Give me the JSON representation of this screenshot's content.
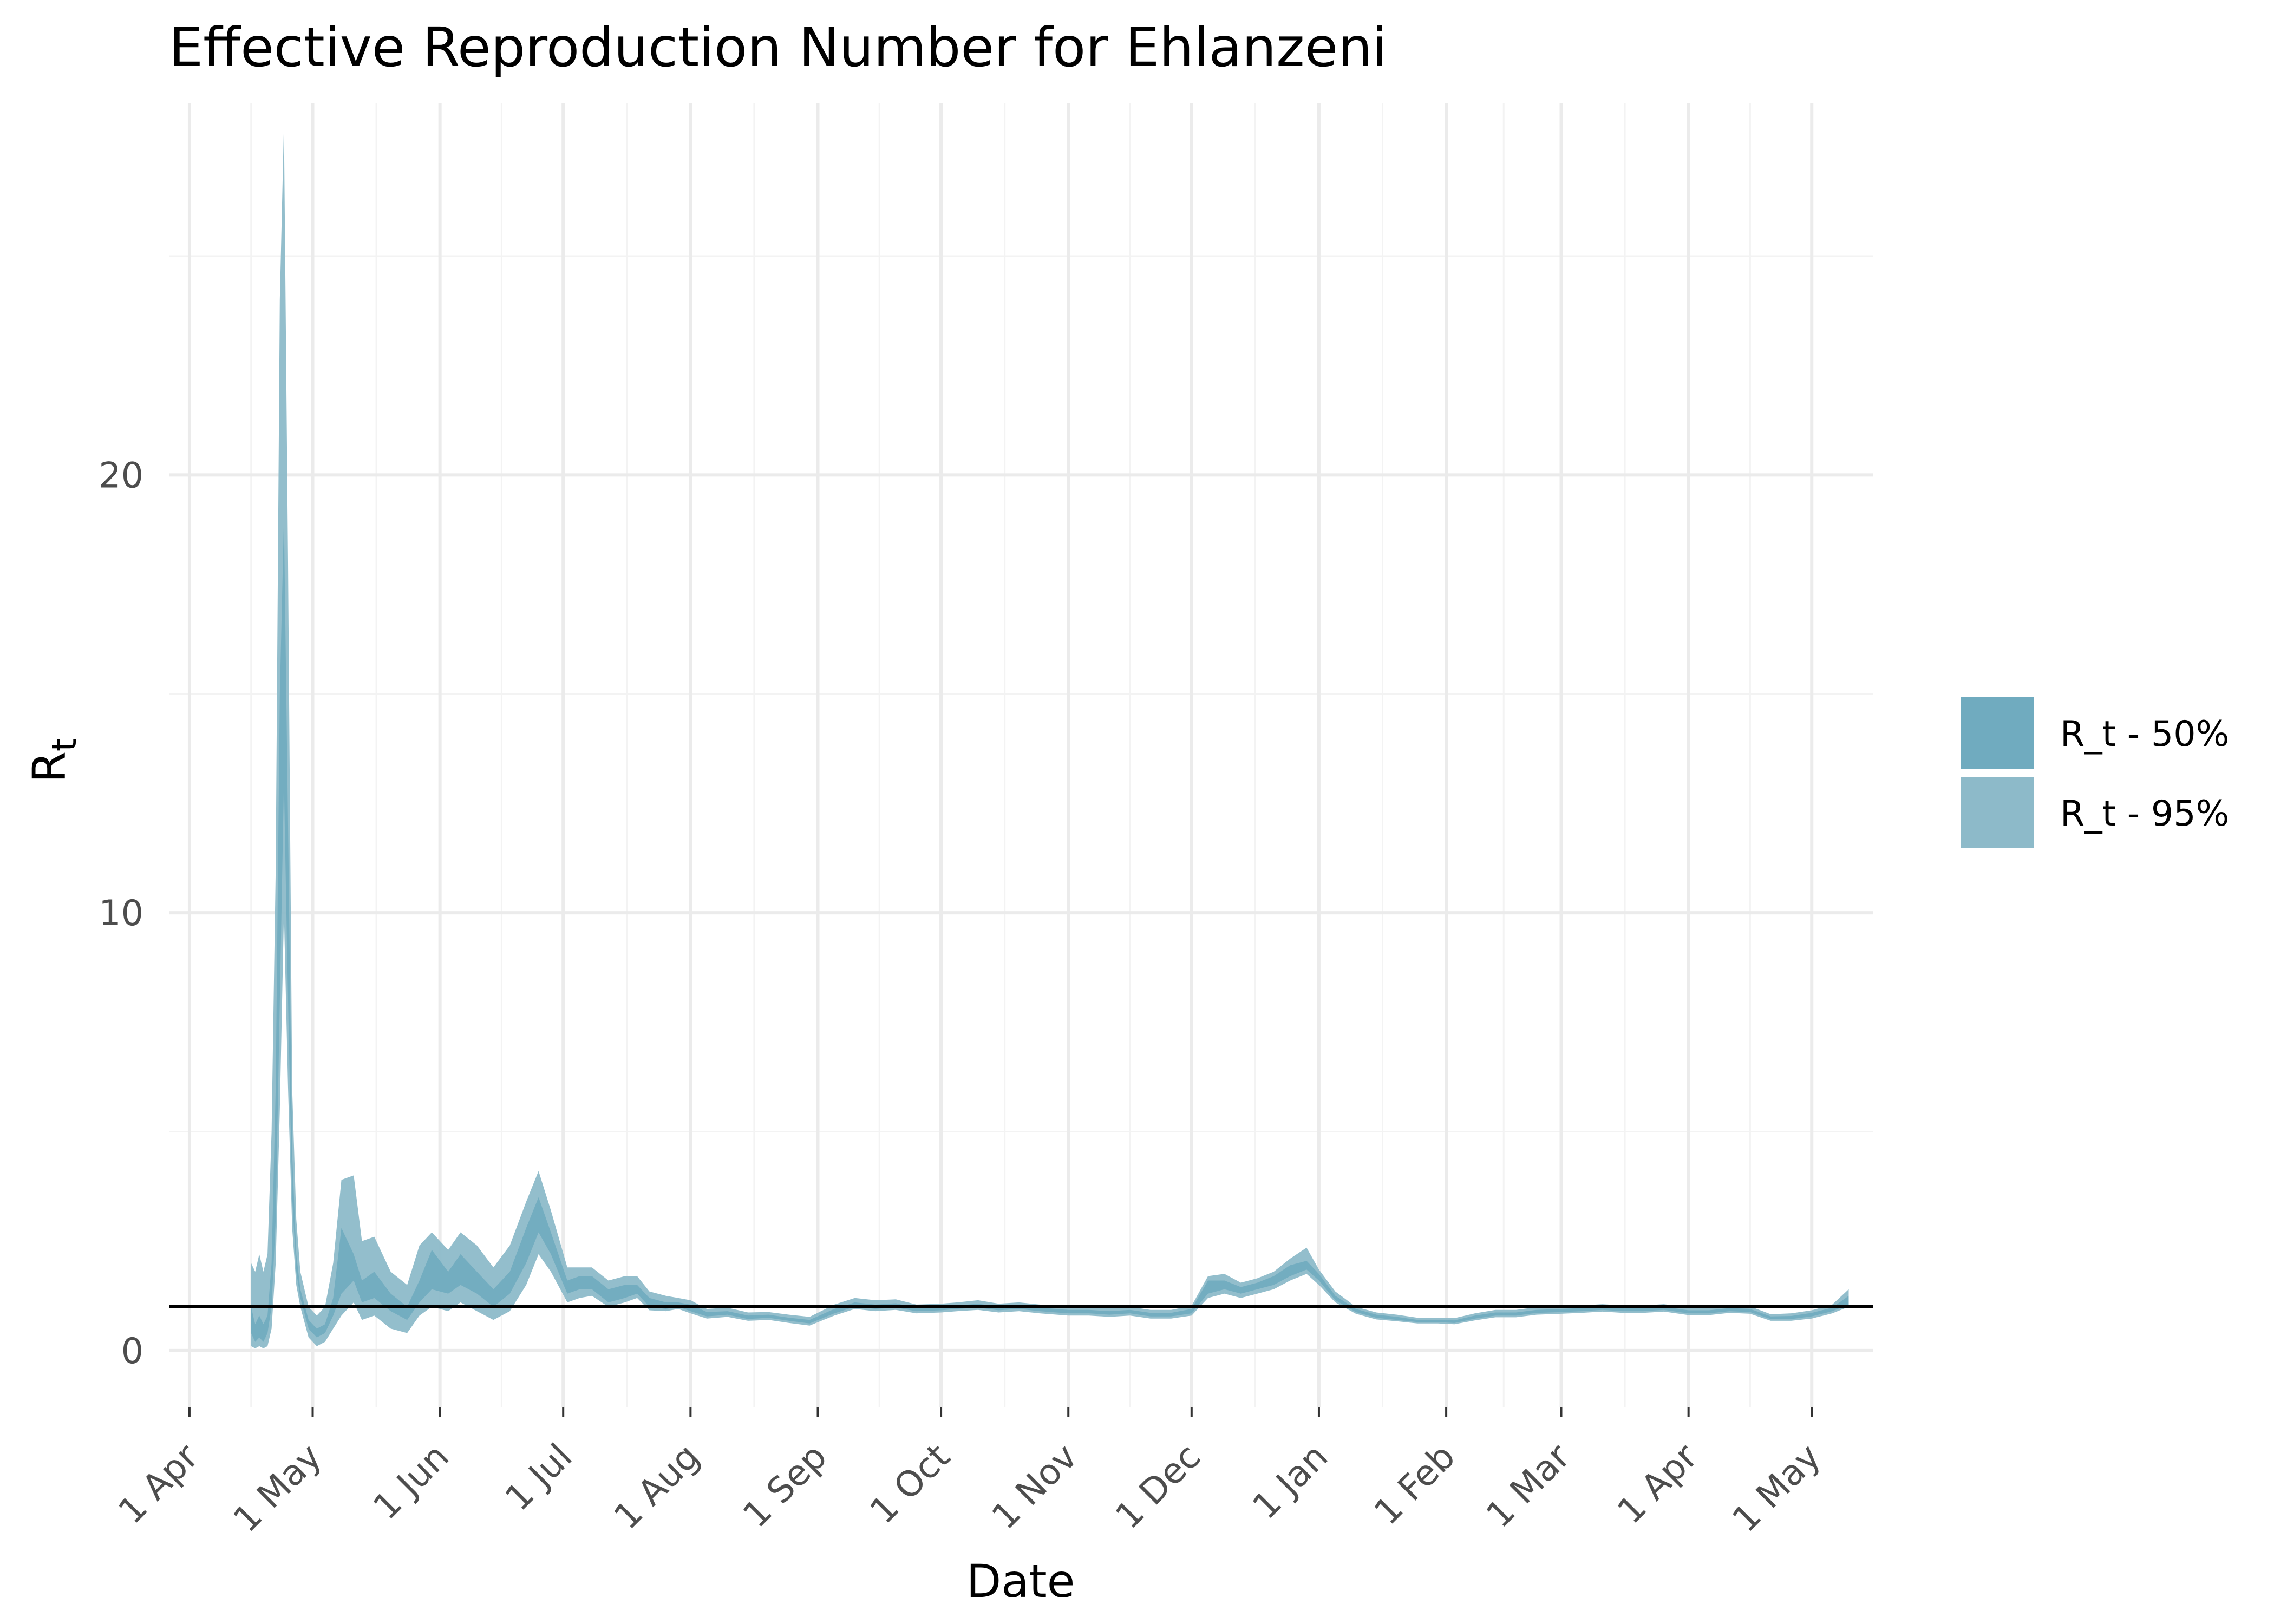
{
  "chart_data": {
    "type": "area",
    "title": "Effective Reproduction Number for Ehlanzeni",
    "xlabel": "Date",
    "ylabel": "R",
    "ylabel_subscript": "t",
    "x_ticks": [
      "1 Apr",
      "1 May",
      "1 Jun",
      "1 Jul",
      "1 Aug",
      "1 Sep",
      "1 Oct",
      "1 Nov",
      "1 Dec",
      "1 Jan",
      "1 Feb",
      "1 Mar",
      "1 Apr",
      "1 May"
    ],
    "x_tick_dates": [
      "2020-04-01",
      "2020-05-01",
      "2020-06-01",
      "2020-07-01",
      "2020-08-01",
      "2020-09-01",
      "2020-10-01",
      "2020-11-01",
      "2020-12-01",
      "2021-01-01",
      "2021-02-01",
      "2021-03-01",
      "2021-04-01",
      "2021-05-01"
    ],
    "xlim": [
      "2020-03-27",
      "2021-05-16"
    ],
    "y_ticks": [
      0,
      10,
      20
    ],
    "ylim": [
      -1.3,
      28.5
    ],
    "grid": true,
    "reference_line": 1,
    "legend_position": "right",
    "colors": {
      "band50": "#70abbf",
      "band95": "#8dbac9",
      "reference_line": "#000000",
      "grid_major": "#ebebeb",
      "grid_minor": "#f3f3f3"
    },
    "series": [
      {
        "name": "R_t - 50%",
        "x": [
          "2020-04-16",
          "2020-04-17",
          "2020-04-18",
          "2020-04-19",
          "2020-04-20",
          "2020-04-21",
          "2020-04-22",
          "2020-04-23",
          "2020-04-24",
          "2020-04-25",
          "2020-04-26",
          "2020-04-27",
          "2020-04-28",
          "2020-04-30",
          "2020-05-02",
          "2020-05-04",
          "2020-05-06",
          "2020-05-08",
          "2020-05-11",
          "2020-05-13",
          "2020-05-16",
          "2020-05-20",
          "2020-05-24",
          "2020-05-27",
          "2020-05-30",
          "2020-06-03",
          "2020-06-06",
          "2020-06-10",
          "2020-06-14",
          "2020-06-18",
          "2020-06-22",
          "2020-06-25",
          "2020-06-28",
          "2020-07-02",
          "2020-07-05",
          "2020-07-08",
          "2020-07-12",
          "2020-07-16",
          "2020-07-19",
          "2020-07-22",
          "2020-07-26",
          "2020-07-29",
          "2020-08-01",
          "2020-08-05",
          "2020-08-10",
          "2020-08-15",
          "2020-08-20",
          "2020-08-25",
          "2020-08-30",
          "2020-09-05",
          "2020-09-10",
          "2020-09-15",
          "2020-09-20",
          "2020-09-25",
          "2020-10-01",
          "2020-10-05",
          "2020-10-10",
          "2020-10-15",
          "2020-10-20",
          "2020-10-25",
          "2020-11-01",
          "2020-11-06",
          "2020-11-11",
          "2020-11-16",
          "2020-11-21",
          "2020-11-26",
          "2020-12-01",
          "2020-12-05",
          "2020-12-09",
          "2020-12-13",
          "2020-12-17",
          "2020-12-21",
          "2020-12-25",
          "2020-12-29",
          "2021-01-01",
          "2021-01-05",
          "2021-01-10",
          "2021-01-15",
          "2021-01-20",
          "2021-01-25",
          "2021-01-30",
          "2021-02-03",
          "2021-02-08",
          "2021-02-13",
          "2021-02-18",
          "2021-02-23",
          "2021-03-01",
          "2021-03-06",
          "2021-03-11",
          "2021-03-16",
          "2021-03-21",
          "2021-03-26",
          "2021-04-01",
          "2021-04-06",
          "2021-04-11",
          "2021-04-16",
          "2021-04-21",
          "2021-04-26",
          "2021-05-01",
          "2021-05-06",
          "2021-05-10"
        ],
        "lower": [
          0.4,
          0.2,
          0.3,
          0.2,
          0.4,
          1.0,
          3.0,
          8.0,
          13.0,
          8.0,
          3.5,
          1.8,
          1.2,
          0.5,
          0.3,
          0.4,
          0.8,
          1.3,
          1.6,
          1.1,
          1.2,
          0.9,
          0.7,
          1.1,
          1.4,
          1.3,
          1.5,
          1.3,
          1.0,
          1.3,
          2.0,
          2.7,
          2.2,
          1.3,
          1.4,
          1.4,
          1.1,
          1.2,
          1.3,
          1.0,
          0.95,
          1.0,
          0.9,
          0.78,
          0.82,
          0.72,
          0.75,
          0.68,
          0.62,
          0.85,
          1.0,
          0.95,
          0.98,
          0.9,
          0.92,
          0.95,
          0.98,
          0.92,
          0.95,
          0.9,
          0.85,
          0.85,
          0.82,
          0.85,
          0.78,
          0.78,
          0.85,
          1.3,
          1.4,
          1.3,
          1.4,
          1.5,
          1.7,
          1.85,
          1.6,
          1.15,
          0.88,
          0.75,
          0.7,
          0.65,
          0.65,
          0.63,
          0.73,
          0.8,
          0.8,
          0.86,
          0.88,
          0.9,
          0.93,
          0.9,
          0.9,
          0.93,
          0.85,
          0.85,
          0.9,
          0.88,
          0.72,
          0.72,
          0.78,
          0.9,
          1.05
        ],
        "upper": [
          1.0,
          0.6,
          0.8,
          0.6,
          0.8,
          2.0,
          6.0,
          15.0,
          19.0,
          12.0,
          4.5,
          2.2,
          1.4,
          0.7,
          0.5,
          0.6,
          1.2,
          2.8,
          2.2,
          1.6,
          1.8,
          1.3,
          1.0,
          1.6,
          2.3,
          1.8,
          2.2,
          1.8,
          1.4,
          1.8,
          2.8,
          3.5,
          2.7,
          1.6,
          1.7,
          1.7,
          1.4,
          1.5,
          1.5,
          1.2,
          1.1,
          1.1,
          1.05,
          0.88,
          0.9,
          0.8,
          0.82,
          0.75,
          0.7,
          0.95,
          1.1,
          1.05,
          1.08,
          0.98,
          1.0,
          1.03,
          1.07,
          1.0,
          1.03,
          0.98,
          0.93,
          0.93,
          0.9,
          0.93,
          0.86,
          0.86,
          0.95,
          1.6,
          1.6,
          1.45,
          1.55,
          1.7,
          1.95,
          2.05,
          1.75,
          1.25,
          0.95,
          0.82,
          0.77,
          0.7,
          0.7,
          0.69,
          0.8,
          0.87,
          0.87,
          0.93,
          0.95,
          0.97,
          1.0,
          0.97,
          0.97,
          1.0,
          0.92,
          0.92,
          0.97,
          0.95,
          0.78,
          0.79,
          0.86,
          0.98,
          1.25
        ]
      },
      {
        "name": "R_t - 95%",
        "x": [
          "2020-04-16",
          "2020-04-17",
          "2020-04-18",
          "2020-04-19",
          "2020-04-20",
          "2020-04-21",
          "2020-04-22",
          "2020-04-23",
          "2020-04-24",
          "2020-04-25",
          "2020-04-26",
          "2020-04-27",
          "2020-04-28",
          "2020-04-30",
          "2020-05-02",
          "2020-05-04",
          "2020-05-06",
          "2020-05-08",
          "2020-05-11",
          "2020-05-13",
          "2020-05-16",
          "2020-05-20",
          "2020-05-24",
          "2020-05-27",
          "2020-05-30",
          "2020-06-03",
          "2020-06-06",
          "2020-06-10",
          "2020-06-14",
          "2020-06-18",
          "2020-06-22",
          "2020-06-25",
          "2020-06-28",
          "2020-07-02",
          "2020-07-05",
          "2020-07-08",
          "2020-07-12",
          "2020-07-16",
          "2020-07-19",
          "2020-07-22",
          "2020-07-26",
          "2020-07-29",
          "2020-08-01",
          "2020-08-05",
          "2020-08-10",
          "2020-08-15",
          "2020-08-20",
          "2020-08-25",
          "2020-08-30",
          "2020-09-05",
          "2020-09-10",
          "2020-09-15",
          "2020-09-20",
          "2020-09-25",
          "2020-10-01",
          "2020-10-05",
          "2020-10-10",
          "2020-10-15",
          "2020-10-20",
          "2020-10-25",
          "2020-11-01",
          "2020-11-06",
          "2020-11-11",
          "2020-11-16",
          "2020-11-21",
          "2020-11-26",
          "2020-12-01",
          "2020-12-05",
          "2020-12-09",
          "2020-12-13",
          "2020-12-17",
          "2020-12-21",
          "2020-12-25",
          "2020-12-29",
          "2021-01-01",
          "2021-01-05",
          "2021-01-10",
          "2021-01-15",
          "2021-01-20",
          "2021-01-25",
          "2021-01-30",
          "2021-02-03",
          "2021-02-08",
          "2021-02-13",
          "2021-02-18",
          "2021-02-23",
          "2021-03-01",
          "2021-03-06",
          "2021-03-11",
          "2021-03-16",
          "2021-03-21",
          "2021-03-26",
          "2021-04-01",
          "2021-04-06",
          "2021-04-11",
          "2021-04-16",
          "2021-04-21",
          "2021-04-26",
          "2021-05-01",
          "2021-05-06",
          "2021-05-10"
        ],
        "lower": [
          0.1,
          0.05,
          0.1,
          0.05,
          0.1,
          0.5,
          2.0,
          5.5,
          10.0,
          6.0,
          2.8,
          1.5,
          1.0,
          0.3,
          0.1,
          0.2,
          0.5,
          0.8,
          1.1,
          0.7,
          0.8,
          0.5,
          0.4,
          0.8,
          1.0,
          0.9,
          1.1,
          0.9,
          0.7,
          0.9,
          1.5,
          2.2,
          1.8,
          1.1,
          1.2,
          1.25,
          1.0,
          1.1,
          1.2,
          0.92,
          0.9,
          0.95,
          0.85,
          0.73,
          0.77,
          0.68,
          0.7,
          0.63,
          0.57,
          0.8,
          0.95,
          0.9,
          0.93,
          0.85,
          0.87,
          0.9,
          0.93,
          0.87,
          0.9,
          0.85,
          0.8,
          0.8,
          0.77,
          0.8,
          0.73,
          0.73,
          0.8,
          1.2,
          1.3,
          1.2,
          1.3,
          1.4,
          1.6,
          1.75,
          1.5,
          1.1,
          0.84,
          0.71,
          0.67,
          0.62,
          0.62,
          0.6,
          0.69,
          0.76,
          0.76,
          0.82,
          0.84,
          0.86,
          0.89,
          0.86,
          0.86,
          0.89,
          0.81,
          0.81,
          0.86,
          0.84,
          0.68,
          0.68,
          0.73,
          0.85,
          1.0
        ],
        "upper": [
          2.0,
          1.8,
          2.2,
          1.8,
          2.2,
          5.0,
          11.0,
          24.0,
          28.0,
          18.0,
          6.0,
          3.0,
          1.8,
          1.0,
          0.8,
          1.0,
          2.0,
          3.9,
          4.0,
          2.5,
          2.6,
          1.8,
          1.5,
          2.4,
          2.7,
          2.3,
          2.7,
          2.4,
          1.9,
          2.4,
          3.4,
          4.1,
          3.2,
          1.9,
          1.9,
          1.9,
          1.6,
          1.7,
          1.7,
          1.35,
          1.25,
          1.2,
          1.15,
          0.95,
          0.98,
          0.87,
          0.88,
          0.82,
          0.77,
          1.05,
          1.2,
          1.15,
          1.17,
          1.05,
          1.07,
          1.1,
          1.15,
          1.07,
          1.1,
          1.05,
          1.0,
          1.0,
          0.97,
          1.0,
          0.93,
          0.93,
          1.02,
          1.7,
          1.75,
          1.55,
          1.65,
          1.8,
          2.1,
          2.35,
          1.85,
          1.35,
          1.0,
          0.87,
          0.82,
          0.75,
          0.75,
          0.74,
          0.85,
          0.93,
          0.93,
          0.99,
          1.01,
          1.03,
          1.06,
          1.03,
          1.03,
          1.06,
          0.98,
          0.98,
          1.03,
          1.01,
          0.83,
          0.85,
          0.92,
          1.05,
          1.4
        ]
      }
    ]
  }
}
